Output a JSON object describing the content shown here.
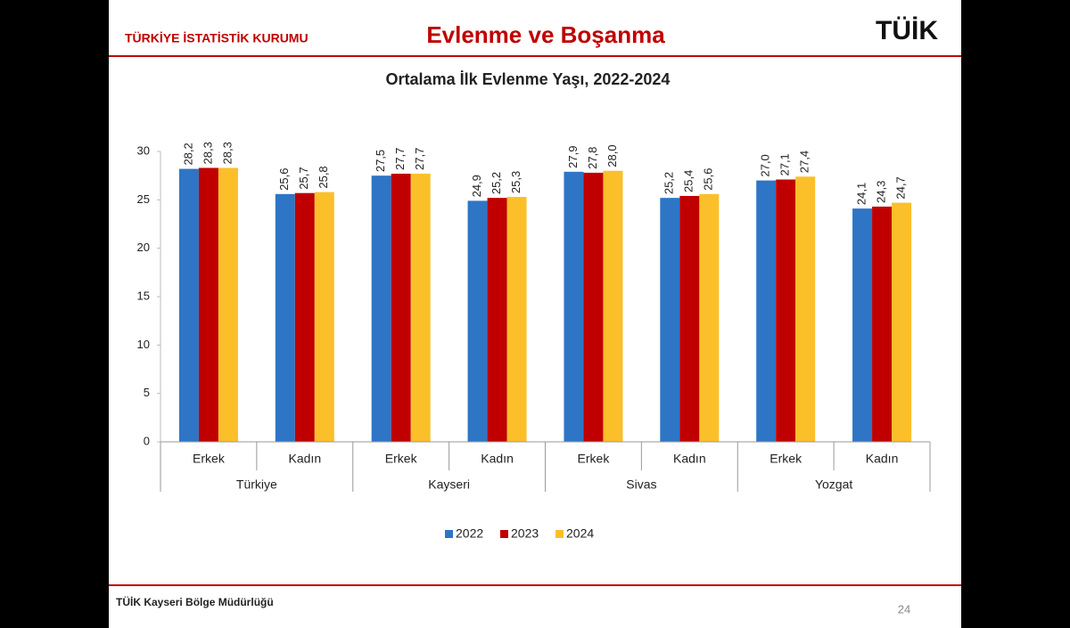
{
  "header": {
    "org": "TÜRKİYE İSTATİSTİK KURUMU",
    "title": "Evlenme ve Boşanma",
    "logo": "TÜİK"
  },
  "chart_data": {
    "type": "bar",
    "title": "Ortalama İlk Evlenme Yaşı, 2022-2024",
    "categories": [
      "Erkek",
      "Kadın",
      "Erkek",
      "Kadın",
      "Erkek",
      "Kadın",
      "Erkek",
      "Kadın"
    ],
    "groups": [
      "Türkiye",
      "Kayseri",
      "Sivas",
      "Yozgat"
    ],
    "series": [
      {
        "name": "2022",
        "color": "#2e75c6",
        "values": [
          28.2,
          25.6,
          27.5,
          24.9,
          27.9,
          25.2,
          27.0,
          24.1
        ],
        "value_labels": [
          "28,2",
          "25,6",
          "27,5",
          "24,9",
          "27,9",
          "25,2",
          "27,0",
          "24,1"
        ]
      },
      {
        "name": "2023",
        "color": "#c00000",
        "values": [
          28.3,
          25.7,
          27.7,
          25.2,
          27.8,
          25.4,
          27.1,
          24.3
        ],
        "value_labels": [
          "28,3",
          "25,7",
          "27,7",
          "25,2",
          "27,8",
          "25,4",
          "27,1",
          "24,3"
        ]
      },
      {
        "name": "2024",
        "color": "#fbbf2a",
        "values": [
          28.3,
          25.8,
          27.7,
          25.3,
          28.0,
          25.6,
          27.4,
          24.7
        ],
        "value_labels": [
          "28,3",
          "25,8",
          "27,7",
          "25,3",
          "28,0",
          "25,6",
          "27,4",
          "24,7"
        ]
      }
    ],
    "ylim": [
      0,
      30
    ],
    "yticks": [
      0,
      5,
      10,
      15,
      20,
      25,
      30
    ],
    "grid": false,
    "legend": "bottom"
  },
  "footer": {
    "text": "TÜİK Kayseri Bölge Müdürlüğü",
    "page": "24"
  }
}
